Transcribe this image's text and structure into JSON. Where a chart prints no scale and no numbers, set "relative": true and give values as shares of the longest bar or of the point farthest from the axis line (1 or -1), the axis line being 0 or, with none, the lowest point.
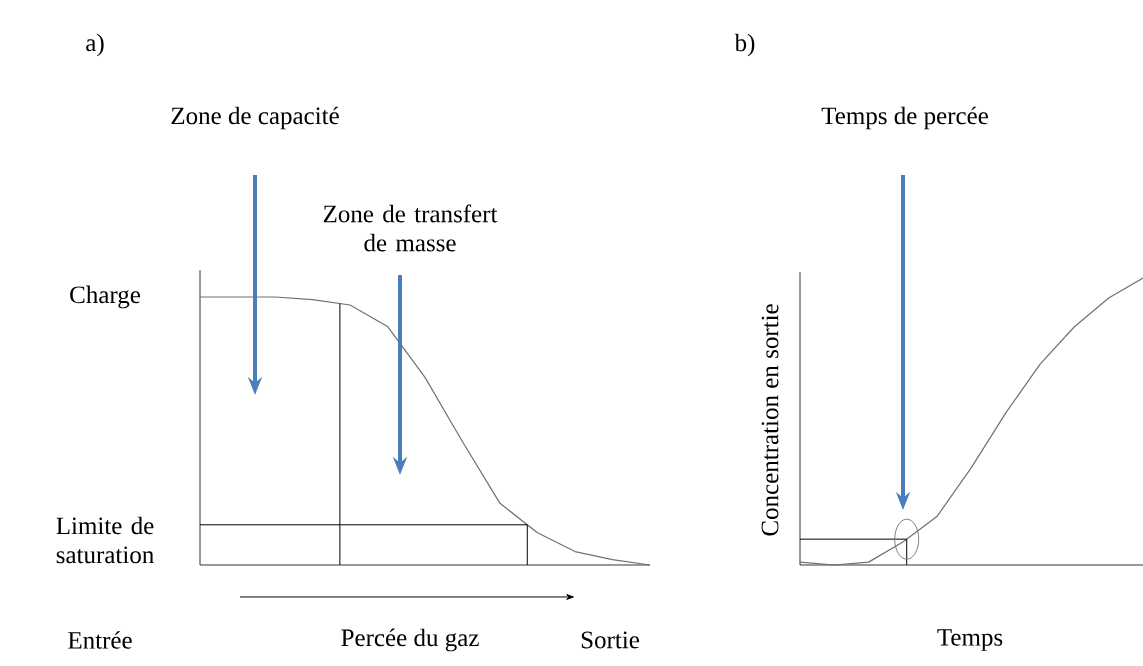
{
  "chart_data": [
    {
      "type": "line",
      "title": "a)",
      "relative": true,
      "xlabel": "Percée du gaz",
      "categories": [
        null,
        null,
        null,
        null,
        null,
        null,
        null,
        null,
        null,
        null,
        null,
        null,
        null
      ],
      "annotations": [
        "Zone de capacité",
        "Zone de transfert de masse",
        "Charge",
        "Entrée",
        "Sortie"
      ],
      "ref_lines": [
        {
          "axis": "y",
          "value": 0.15,
          "label": "Limite de saturation",
          "color": "#000000"
        }
      ],
      "series": [
        {
          "color": "#707070",
          "values": [
            1.0,
            1.0,
            1.0,
            0.99,
            0.97,
            0.89,
            0.7,
            0.46,
            0.23,
            0.12,
            0.05,
            0.02,
            0
          ]
        }
      ]
    },
    {
      "type": "line",
      "title": "b)",
      "relative": true,
      "xlabel": "Temps",
      "ylabel": "Concentration en sortie",
      "categories": [
        null,
        null,
        null,
        null,
        null,
        null,
        null,
        null,
        null,
        null,
        null
      ],
      "annotations": [
        "Temps de percée"
      ],
      "ref_lines": [
        {
          "axis": "y",
          "value": 0.09,
          "color": "#000000"
        }
      ],
      "series": [
        {
          "color": "#707070",
          "values": [
            0.01,
            0,
            0.01,
            0.08,
            0.17,
            0.34,
            0.53,
            0.7,
            0.83,
            0.93,
            1.0
          ]
        }
      ]
    }
  ]
}
